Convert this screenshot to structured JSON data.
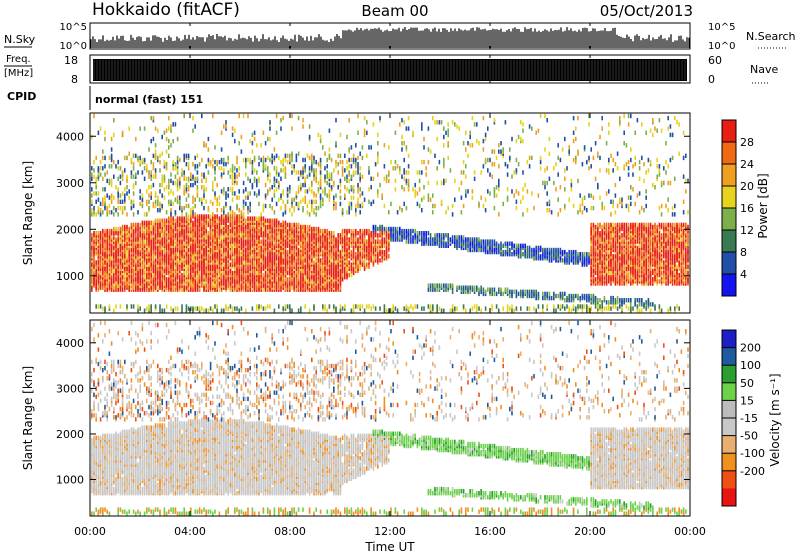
{
  "header": {
    "station": "Hokkaido (fitACF)",
    "beam": "Beam 00",
    "date": "05/Oct/2013"
  },
  "status_panels": {
    "nsky_label": "N.Sky",
    "nsky_ticks": [
      "10^5",
      "10^0"
    ],
    "nsky_right_ticks": [
      "10^5",
      "10^0"
    ],
    "nsearch_label": "N.Search",
    "freq_label_top": "Freq.",
    "freq_label_unit": "[MHz]",
    "freq_ticks": [
      "18",
      "8"
    ],
    "freq_range": [
      8,
      18
    ],
    "nave_label": "Nave",
    "nave_ticks": [
      "60",
      "0"
    ],
    "nave_range": [
      0,
      60
    ],
    "cpid_label": "CPID",
    "cpid_text": "normal (fast) 151"
  },
  "colors": {
    "power_scale": [
      "#1414f0",
      "#1f4fa8",
      "#3a7a52",
      "#7cb04a",
      "#e7d31c",
      "#f0a020",
      "#f06a14",
      "#e81e14"
    ],
    "velocity_scale": [
      "#e81414",
      "#f05014",
      "#f09020",
      "#e8b070",
      "#c8c8c8",
      "#bcbcbc",
      "#6cd24a",
      "#2a9e30",
      "#1e5a9e",
      "#1e1ec8"
    ]
  },
  "chart_data": [
    {
      "type": "heatmap",
      "panel": "power",
      "ylabel": "Slant Range [km]",
      "yticks": [
        "1000",
        "2000",
        "3000",
        "4000"
      ],
      "ylim": [
        200,
        4500
      ],
      "xlim_hours": [
        0,
        24
      ],
      "colorbar": {
        "label": "Power [dB]",
        "ticks": [
          "4",
          "8",
          "12",
          "16",
          "20",
          "24",
          "28"
        ],
        "range": [
          0,
          32
        ]
      },
      "features": [
        {
          "name": "main echo band",
          "start": "00:00",
          "end": "10:00",
          "range_km": [
            700,
            2000
          ],
          "power_db": 26
        },
        {
          "name": "main echo band (evening)",
          "start": "20:00",
          "end": "24:00",
          "range_km": [
            900,
            2200
          ],
          "power_db": 26
        },
        {
          "name": "descending arc",
          "start": "11:30",
          "end": "20:00",
          "range_km": [
            1300,
            1900
          ],
          "power_db": 8
        },
        {
          "name": "lower arc",
          "start": "14:00",
          "end": "22:00",
          "range_km": [
            400,
            700
          ],
          "power_db": 10
        }
      ]
    },
    {
      "type": "heatmap",
      "panel": "velocity",
      "ylabel": "Slant Range [km]",
      "yticks": [
        "1000",
        "2000",
        "3000",
        "4000"
      ],
      "ylim": [
        200,
        4500
      ],
      "xlim_hours": [
        0,
        24
      ],
      "xticks": [
        "00:00",
        "04:00",
        "08:00",
        "12:00",
        "16:00",
        "20:00",
        "00:00"
      ],
      "xlabel": "Time UT",
      "colorbar": {
        "label": "Velocity [m s⁻¹]",
        "ticks": [
          "200",
          "100",
          "50",
          "15",
          "-15",
          "-50",
          "-100",
          "-200"
        ],
        "range": [
          -250,
          250
        ]
      },
      "features": [
        {
          "name": "ground scatter band",
          "start": "00:00",
          "end": "24:00",
          "range_km": [
            700,
            2000
          ],
          "velocity_ms": 0
        },
        {
          "name": "descending arc",
          "start": "11:30",
          "end": "20:00",
          "range_km": [
            1300,
            1900
          ],
          "velocity_ms": 30
        },
        {
          "name": "lower arc",
          "start": "14:00",
          "end": "22:00",
          "range_km": [
            400,
            700
          ],
          "velocity_ms": 30
        }
      ]
    }
  ]
}
